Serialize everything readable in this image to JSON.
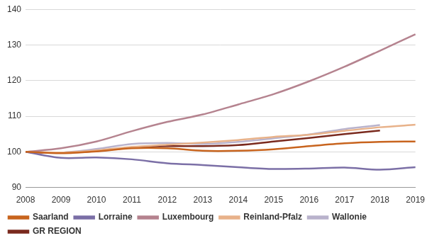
{
  "chart_data": {
    "type": "line",
    "categories": [
      2008,
      2009,
      2010,
      2011,
      2012,
      2013,
      2014,
      2015,
      2016,
      2017,
      2018,
      2019
    ],
    "series": [
      {
        "name": "Saarland",
        "color": "#c8641e",
        "values": [
          100,
          99.6,
          100.1,
          101.0,
          101.0,
          100.3,
          100.3,
          100.7,
          101.6,
          102.4,
          102.8,
          102.9
        ]
      },
      {
        "name": "Lorraine",
        "color": "#7b6fa6",
        "values": [
          100,
          98.3,
          98.4,
          97.9,
          96.8,
          96.3,
          95.7,
          95.2,
          95.3,
          95.6,
          95.0,
          95.7
        ]
      },
      {
        "name": "Luxembourg",
        "color": "#b5838f",
        "values": [
          100,
          101.0,
          102.9,
          105.8,
          108.4,
          110.5,
          113.3,
          116.2,
          119.8,
          123.9,
          128.4,
          133.0
        ]
      },
      {
        "name": "Reinland-Pfalz",
        "color": "#e8b28a",
        "values": [
          100,
          99.8,
          100.4,
          101.4,
          102.0,
          102.6,
          103.3,
          104.2,
          104.8,
          105.9,
          106.9,
          107.6
        ]
      },
      {
        "name": "Wallonie",
        "color": "#b9b3cc",
        "values": [
          100,
          99.8,
          100.8,
          102.2,
          102.5,
          102.2,
          102.8,
          103.8,
          104.9,
          106.4,
          107.5,
          null
        ]
      },
      {
        "name": "GR REGION",
        "color": "#7a2a1e",
        "values": [
          100,
          99.7,
          100.2,
          101.2,
          101.6,
          101.6,
          101.9,
          102.9,
          103.9,
          105.0,
          106.0,
          null
        ]
      }
    ],
    "ylim": [
      90,
      140
    ],
    "yticks": [
      90,
      100,
      110,
      120,
      130,
      140
    ],
    "grid": true,
    "legend": "bottom"
  }
}
